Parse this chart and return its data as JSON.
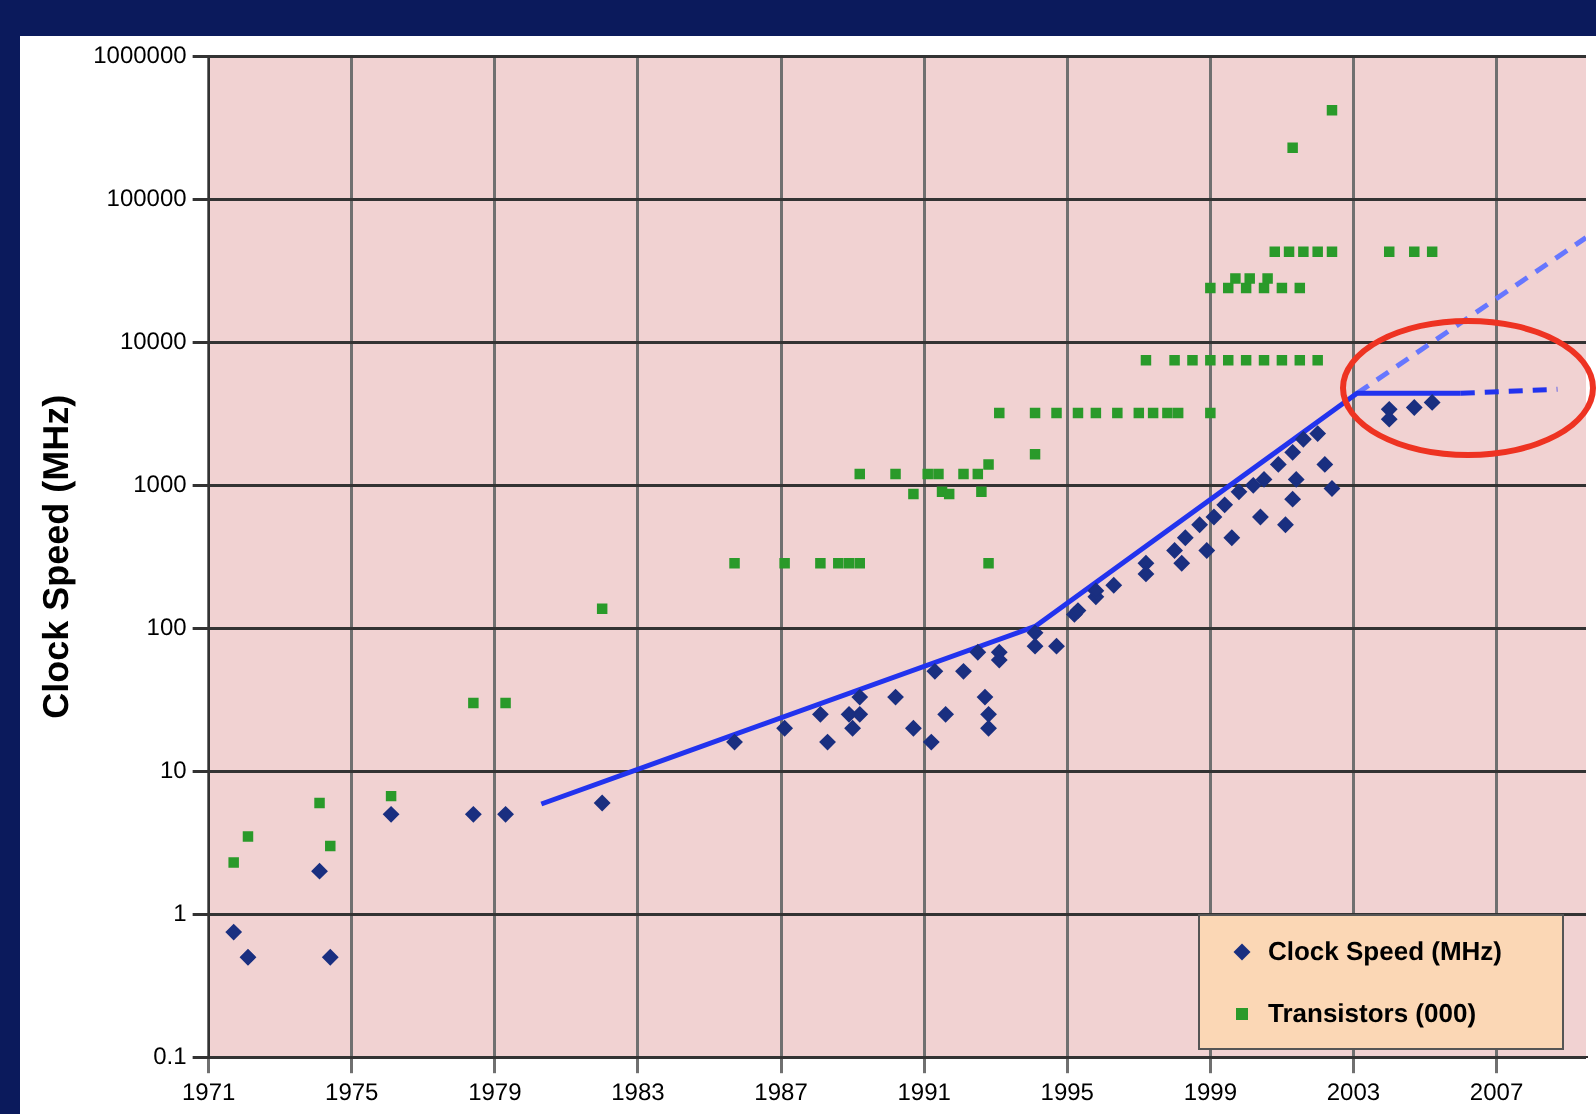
{
  "chart_data": {
    "type": "scatter",
    "ylabel": "Clock Speed (MHz)",
    "log": "y",
    "grid": true,
    "legend": "bottom right",
    "xlim": [
      1971,
      2009.5
    ],
    "xticks": [
      1971,
      1975,
      1979,
      1983,
      1987,
      1991,
      1995,
      1999,
      2003,
      2007
    ],
    "ylim": [
      0.1,
      1000000
    ],
    "yticks": [
      0.1,
      1,
      10,
      100,
      1000,
      10000,
      100000,
      1000000
    ],
    "series": [
      {
        "name": "Clock Speed (MHz)",
        "type": "scatter",
        "marker": "diamond",
        "color": "#1a2f80",
        "x": [
          1971.7,
          1972.1,
          1974.1,
          1974.4,
          1976.1,
          1978.4,
          1979.3,
          1982,
          1985.7,
          1987.1,
          1988.1,
          1988.3,
          1988.9,
          1989.0,
          1989.2,
          1989.2,
          1990.2,
          1990.7,
          1991.2,
          1991.3,
          1991.6,
          1992.1,
          1992.5,
          1992.7,
          1992.8,
          1992.8,
          1993.1,
          1993.1,
          1994.1,
          1994.1,
          1994.7,
          1995.2,
          1995.3,
          1995.8,
          1995.8,
          1996.3,
          1997.2,
          1997.2,
          1998.0,
          1998.2,
          1998.3,
          1998.7,
          1998.9,
          1999.1,
          1999.4,
          1999.6,
          1999.8,
          2000.2,
          2000.4,
          2000.5,
          2000.9,
          2001.1,
          2001.3,
          2001.3,
          2001.4,
          2001.6,
          2002.0,
          2002.2,
          2002.4,
          2004.0,
          2004.0,
          2004.7,
          2005.2
        ],
        "values": [
          0.75,
          0.5,
          2,
          0.5,
          5,
          5,
          5,
          6,
          16,
          20,
          25,
          16,
          25,
          20,
          25,
          33,
          33,
          20,
          16,
          50,
          25,
          50,
          68,
          33,
          25,
          20,
          68,
          60,
          93,
          75,
          75,
          125,
          133,
          166,
          183,
          200,
          285,
          240,
          350,
          285,
          430,
          530,
          350,
          600,
          730,
          430,
          900,
          1000,
          600,
          1100,
          1400,
          530,
          1700,
          800,
          1100,
          2100,
          2300,
          1400,
          950,
          3400,
          2900,
          3500,
          3800
        ]
      },
      {
        "name": "Transistors (000)",
        "type": "scatter",
        "marker": "square",
        "color": "#2a9a2a",
        "x": [
          1971.7,
          1972.1,
          1974.1,
          1974.4,
          1976.1,
          1978.4,
          1979.3,
          1982,
          1985.7,
          1987.1,
          1988.1,
          1988.6,
          1988.9,
          1989.2,
          1992.8,
          1989.2,
          1990.2,
          1991.1,
          1991.4,
          1992.1,
          1992.5,
          1992.8,
          1990.7,
          1991.5,
          1991.7,
          1992.6,
          1993.1,
          1994.1,
          1994.1,
          1994.7,
          1995.3,
          1995.8,
          1996.4,
          1997.0,
          1997.4,
          1997.8,
          1998.1,
          1999.0,
          1997.2,
          1998.0,
          1998.5,
          1999.0,
          1999.5,
          2000.0,
          2000.5,
          2001.0,
          2001.5,
          2002.0,
          1999.0,
          1999.5,
          2000.0,
          2000.5,
          2001.0,
          2001.5,
          1999.7,
          2000.1,
          2000.6,
          2000.8,
          2001.2,
          2001.6,
          2002.0,
          2002.4,
          2004.0,
          2004.7,
          2005.2,
          2001.3,
          2002.4
        ],
        "values": [
          2.3,
          3.5,
          6,
          3,
          6.7,
          30,
          30,
          137,
          285,
          285,
          285,
          285,
          285,
          285,
          285,
          1200,
          1200,
          1200,
          1200,
          1200,
          1200,
          1400,
          870,
          900,
          870,
          900,
          3200,
          3200,
          1650,
          3200,
          3200,
          3200,
          3200,
          3200,
          3200,
          3200,
          3200,
          3200,
          7500,
          7500,
          7500,
          7500,
          7500,
          7500,
          7500,
          7500,
          7500,
          7500,
          24000,
          24000,
          24000,
          24000,
          24000,
          24000,
          28000,
          28000,
          28000,
          43000,
          43000,
          43000,
          43000,
          43000,
          43000,
          43000,
          43000,
          230000,
          420000
        ]
      },
      {
        "type": "line",
        "marker": "none",
        "line_style": "solid",
        "color": "#2233ee",
        "x": [
          1980.3,
          1994.1,
          2003.1,
          2006.0
        ],
        "values": [
          5.9,
          103,
          4400,
          4400
        ]
      },
      {
        "type": "line",
        "marker": "none",
        "line_style": "dashed",
        "color": "#2233ee",
        "x": [
          2006.0,
          2008.7
        ],
        "values": [
          4400,
          4700
        ]
      },
      {
        "type": "line",
        "marker": "none",
        "line_style": "dashed",
        "color": "#6677ff",
        "x": [
          2003.1,
          2009.5
        ],
        "values": [
          4400,
          54000
        ]
      }
    ]
  }
}
